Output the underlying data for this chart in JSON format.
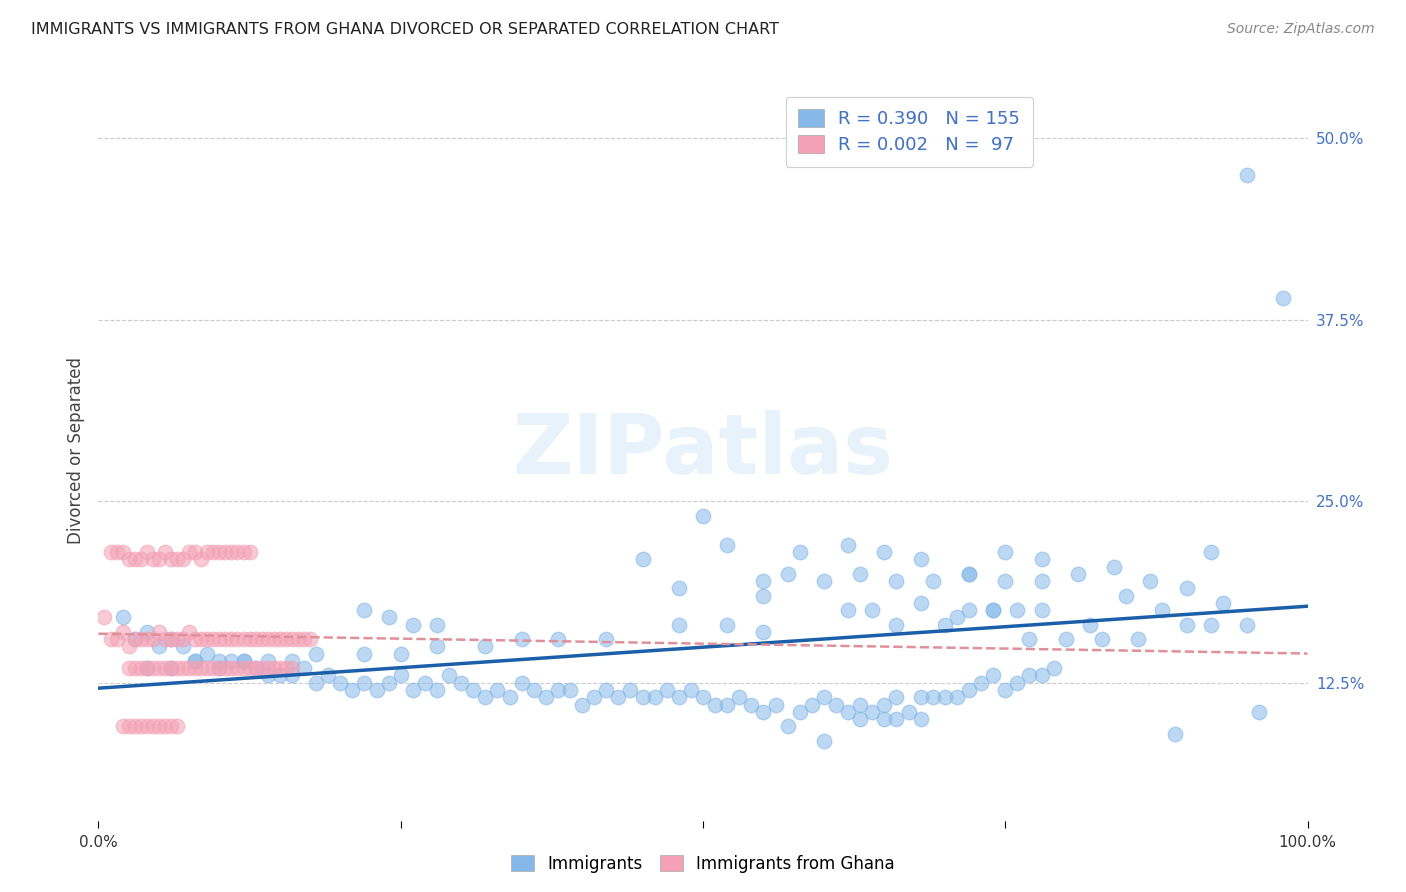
{
  "title": "IMMIGRANTS VS IMMIGRANTS FROM GHANA DIVORCED OR SEPARATED CORRELATION CHART",
  "source": "Source: ZipAtlas.com",
  "ylabel": "Divorced or Separated",
  "legend_label1": "Immigrants",
  "legend_label2": "Immigrants from Ghana",
  "R1": 0.39,
  "N1": 155,
  "R2": 0.002,
  "N2": 97,
  "color1": "#85b8e8",
  "color2": "#f4a0b5",
  "trend_color1": "#1a5fa8",
  "trend_color2": "#e0909a",
  "background_color": "#ffffff",
  "grid_color": "#cccccc",
  "xlim": [
    0.0,
    1.0
  ],
  "ylim": [
    0.03,
    0.54
  ],
  "xticks": [
    0.0,
    0.25,
    0.5,
    0.75,
    1.0
  ],
  "xticklabels": [
    "0.0%",
    "",
    "",
    "",
    "100.0%"
  ],
  "yticks": [
    0.125,
    0.25,
    0.375,
    0.5
  ],
  "yticklabels": [
    "12.5%",
    "25.0%",
    "37.5%",
    "50.0%"
  ],
  "blue_x": [
    0.02,
    0.03,
    0.04,
    0.05,
    0.06,
    0.07,
    0.08,
    0.09,
    0.1,
    0.11,
    0.12,
    0.13,
    0.14,
    0.15,
    0.16,
    0.17,
    0.18,
    0.19,
    0.2,
    0.21,
    0.22,
    0.23,
    0.24,
    0.25,
    0.26,
    0.27,
    0.28,
    0.29,
    0.3,
    0.31,
    0.32,
    0.33,
    0.34,
    0.35,
    0.36,
    0.37,
    0.38,
    0.39,
    0.4,
    0.41,
    0.42,
    0.43,
    0.44,
    0.45,
    0.46,
    0.47,
    0.48,
    0.49,
    0.5,
    0.51,
    0.52,
    0.53,
    0.54,
    0.55,
    0.56,
    0.57,
    0.58,
    0.59,
    0.6,
    0.61,
    0.62,
    0.63,
    0.64,
    0.65,
    0.66,
    0.67,
    0.68,
    0.69,
    0.7,
    0.71,
    0.72,
    0.73,
    0.74,
    0.75,
    0.76,
    0.77,
    0.78,
    0.79,
    0.5,
    0.52,
    0.45,
    0.48,
    0.55,
    0.58,
    0.62,
    0.65,
    0.68,
    0.72,
    0.75,
    0.78,
    0.52,
    0.55,
    0.48,
    0.42,
    0.38,
    0.35,
    0.32,
    0.28,
    0.25,
    0.22,
    0.18,
    0.16,
    0.14,
    0.12,
    0.1,
    0.08,
    0.06,
    0.04,
    0.22,
    0.24,
    0.26,
    0.28,
    0.62,
    0.64,
    0.66,
    0.68,
    0.7,
    0.72,
    0.74,
    0.76,
    0.78,
    0.82,
    0.85,
    0.88,
    0.9,
    0.92,
    0.95,
    0.55,
    0.57,
    0.6,
    0.63,
    0.66,
    0.69,
    0.72,
    0.75,
    0.78,
    0.81,
    0.84,
    0.87,
    0.9,
    0.93,
    0.96,
    0.65,
    0.68,
    0.71,
    0.74,
    0.77,
    0.8,
    0.83,
    0.86,
    0.89,
    0.92,
    0.95,
    0.98,
    0.6,
    0.63,
    0.66
  ],
  "blue_y": [
    0.17,
    0.155,
    0.16,
    0.15,
    0.155,
    0.15,
    0.14,
    0.145,
    0.14,
    0.14,
    0.14,
    0.135,
    0.13,
    0.13,
    0.13,
    0.135,
    0.125,
    0.13,
    0.125,
    0.12,
    0.125,
    0.12,
    0.125,
    0.13,
    0.12,
    0.125,
    0.12,
    0.13,
    0.125,
    0.12,
    0.115,
    0.12,
    0.115,
    0.125,
    0.12,
    0.115,
    0.12,
    0.12,
    0.11,
    0.115,
    0.12,
    0.115,
    0.12,
    0.115,
    0.115,
    0.12,
    0.115,
    0.12,
    0.115,
    0.11,
    0.11,
    0.115,
    0.11,
    0.105,
    0.11,
    0.095,
    0.105,
    0.11,
    0.085,
    0.11,
    0.105,
    0.11,
    0.105,
    0.11,
    0.115,
    0.105,
    0.115,
    0.115,
    0.115,
    0.115,
    0.12,
    0.125,
    0.13,
    0.12,
    0.125,
    0.13,
    0.13,
    0.135,
    0.24,
    0.22,
    0.21,
    0.19,
    0.185,
    0.215,
    0.22,
    0.215,
    0.21,
    0.2,
    0.215,
    0.21,
    0.165,
    0.16,
    0.165,
    0.155,
    0.155,
    0.155,
    0.15,
    0.15,
    0.145,
    0.145,
    0.145,
    0.14,
    0.14,
    0.14,
    0.135,
    0.14,
    0.135,
    0.135,
    0.175,
    0.17,
    0.165,
    0.165,
    0.175,
    0.175,
    0.165,
    0.18,
    0.165,
    0.175,
    0.175,
    0.175,
    0.175,
    0.165,
    0.185,
    0.175,
    0.165,
    0.165,
    0.165,
    0.195,
    0.2,
    0.195,
    0.2,
    0.195,
    0.195,
    0.2,
    0.195,
    0.195,
    0.2,
    0.205,
    0.195,
    0.19,
    0.18,
    0.105,
    0.1,
    0.1,
    0.17,
    0.175,
    0.155,
    0.155,
    0.155,
    0.155,
    0.09,
    0.215,
    0.475,
    0.39,
    0.115,
    0.1,
    0.1
  ],
  "pink_x": [
    0.005,
    0.01,
    0.015,
    0.02,
    0.025,
    0.03,
    0.035,
    0.04,
    0.045,
    0.05,
    0.055,
    0.06,
    0.065,
    0.07,
    0.075,
    0.08,
    0.085,
    0.09,
    0.095,
    0.1,
    0.105,
    0.11,
    0.115,
    0.12,
    0.125,
    0.13,
    0.135,
    0.14,
    0.145,
    0.15,
    0.155,
    0.16,
    0.165,
    0.17,
    0.175,
    0.01,
    0.015,
    0.02,
    0.025,
    0.03,
    0.035,
    0.04,
    0.045,
    0.05,
    0.055,
    0.06,
    0.065,
    0.07,
    0.075,
    0.08,
    0.085,
    0.09,
    0.095,
    0.1,
    0.105,
    0.11,
    0.115,
    0.12,
    0.125,
    0.025,
    0.03,
    0.035,
    0.04,
    0.045,
    0.05,
    0.055,
    0.06,
    0.065,
    0.07,
    0.075,
    0.08,
    0.085,
    0.09,
    0.095,
    0.1,
    0.105,
    0.11,
    0.115,
    0.12,
    0.125,
    0.13,
    0.135,
    0.14,
    0.145,
    0.15,
    0.155,
    0.16,
    0.02,
    0.025,
    0.03,
    0.035,
    0.04,
    0.045,
    0.05,
    0.055,
    0.06,
    0.065
  ],
  "pink_y": [
    0.17,
    0.155,
    0.155,
    0.16,
    0.15,
    0.155,
    0.155,
    0.155,
    0.155,
    0.16,
    0.155,
    0.155,
    0.155,
    0.155,
    0.16,
    0.155,
    0.155,
    0.155,
    0.155,
    0.155,
    0.155,
    0.155,
    0.155,
    0.155,
    0.155,
    0.155,
    0.155,
    0.155,
    0.155,
    0.155,
    0.155,
    0.155,
    0.155,
    0.155,
    0.155,
    0.215,
    0.215,
    0.215,
    0.21,
    0.21,
    0.21,
    0.215,
    0.21,
    0.21,
    0.215,
    0.21,
    0.21,
    0.21,
    0.215,
    0.215,
    0.21,
    0.215,
    0.215,
    0.215,
    0.215,
    0.215,
    0.215,
    0.215,
    0.215,
    0.135,
    0.135,
    0.135,
    0.135,
    0.135,
    0.135,
    0.135,
    0.135,
    0.135,
    0.135,
    0.135,
    0.135,
    0.135,
    0.135,
    0.135,
    0.135,
    0.135,
    0.135,
    0.135,
    0.135,
    0.135,
    0.135,
    0.135,
    0.135,
    0.135,
    0.135,
    0.135,
    0.135,
    0.095,
    0.095,
    0.095,
    0.095,
    0.095,
    0.095,
    0.095,
    0.095,
    0.095,
    0.095
  ]
}
